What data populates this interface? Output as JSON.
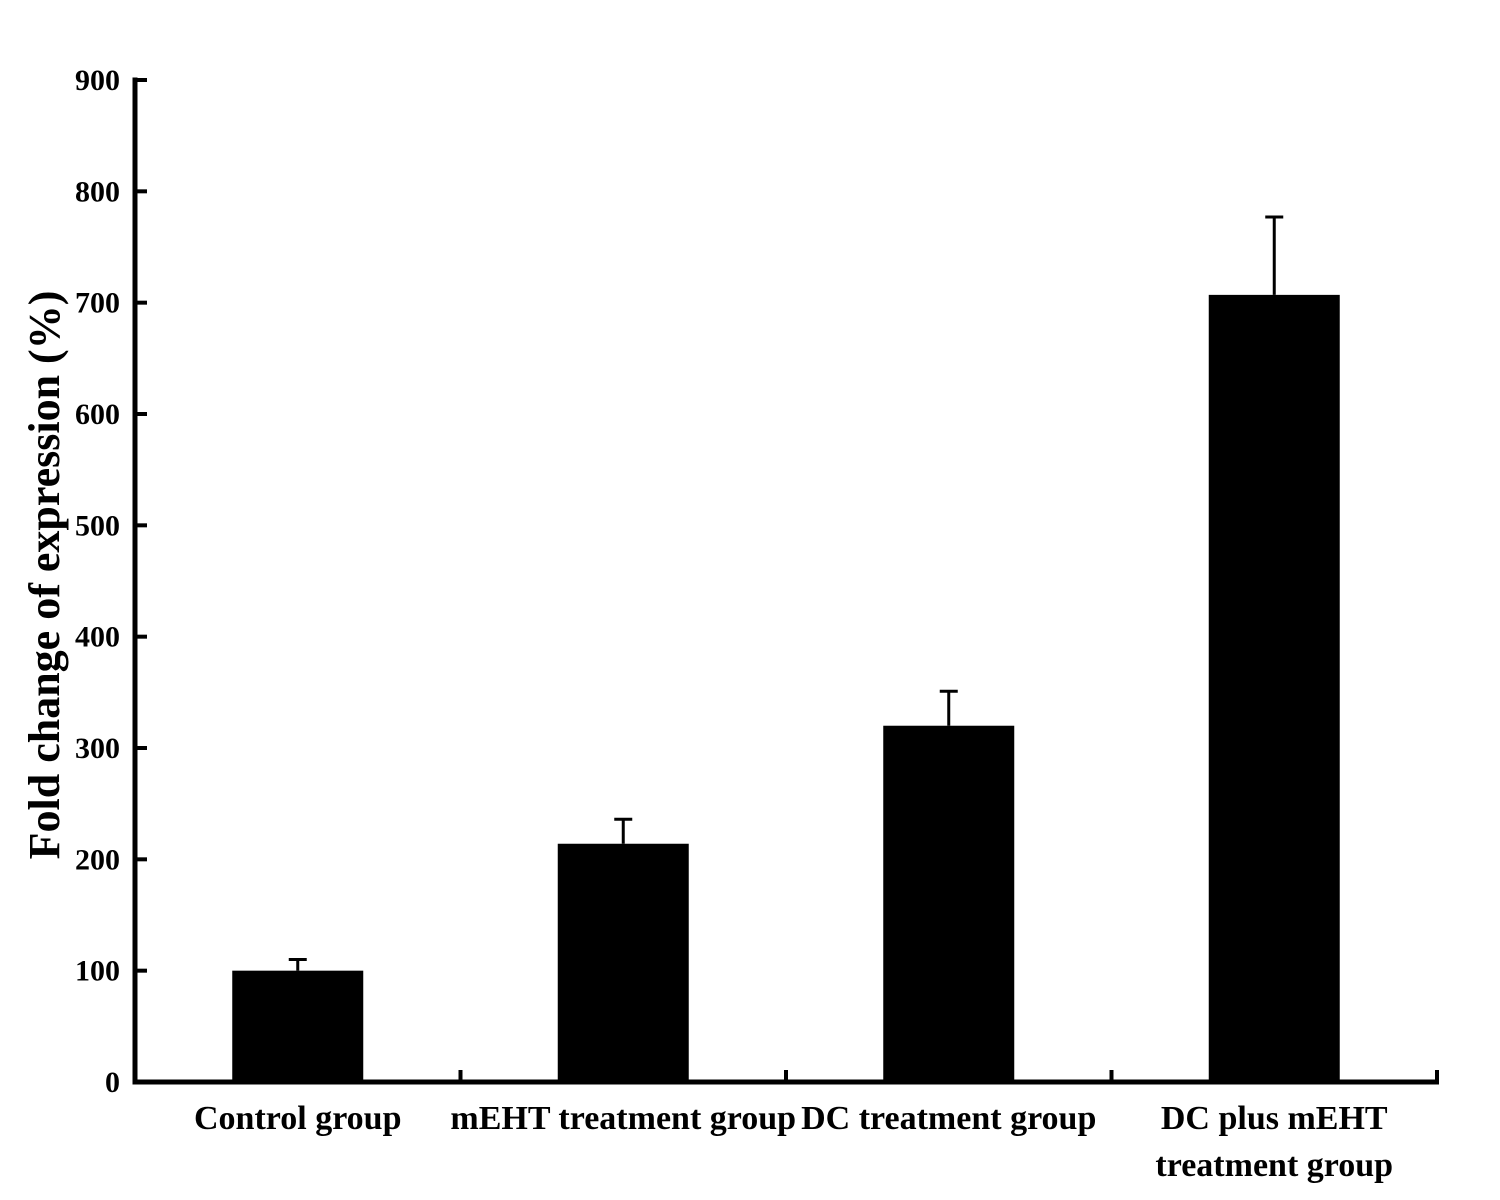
{
  "figure": {
    "background_color": "#ffffff",
    "ink_color": "#000000"
  },
  "chart_data": {
    "type": "bar",
    "title": "",
    "xlabel": "",
    "ylabel": "Fold change of expression (%)",
    "categories": [
      "Control group",
      "mEHT treatment group",
      "DC treatment group",
      "DC  plus mEHT\ntreatment group"
    ],
    "values": [
      100,
      214,
      320,
      707
    ],
    "errors": [
      10,
      22,
      31,
      70
    ],
    "error_direction": "up",
    "bar_color": "#000000",
    "ylim": [
      0,
      900
    ],
    "ytick_step": 100,
    "ytick_labels": [
      "0",
      "100",
      "200",
      "300",
      "400",
      "500",
      "600",
      "700",
      "800",
      "900"
    ],
    "grid": false,
    "legend": false
  }
}
